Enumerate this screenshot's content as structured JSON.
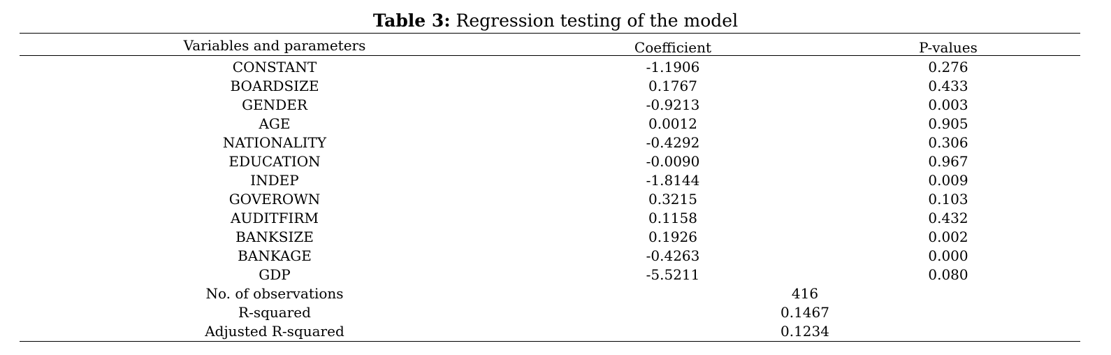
{
  "caption": {
    "label": "Table 3:",
    "text": " Regression testing of the model"
  },
  "table": {
    "headers": {
      "variables": "Variables and parameters",
      "coefficient": "Coefficient",
      "pvalues": "P-values"
    },
    "rows": [
      {
        "variable": "CONSTANT",
        "coefficient": "-1.1906",
        "pvalue": "0.276"
      },
      {
        "variable": "BOARDSIZE",
        "coefficient": "0.1767",
        "pvalue": "0.433"
      },
      {
        "variable": "GENDER",
        "coefficient": "-0.9213",
        "pvalue": "0.003"
      },
      {
        "variable": "AGE",
        "coefficient": "0.0012",
        "pvalue": "0.905"
      },
      {
        "variable": "NATIONALITY",
        "coefficient": "-0.4292",
        "pvalue": "0.306"
      },
      {
        "variable": "EDUCATION",
        "coefficient": "-0.0090",
        "pvalue": "0.967"
      },
      {
        "variable": "INDEP",
        "coefficient": "-1.8144",
        "pvalue": "0.009"
      },
      {
        "variable": "GOVEROWN",
        "coefficient": "0.3215",
        "pvalue": "0.103"
      },
      {
        "variable": "AUDITFIRM",
        "coefficient": "0.1158",
        "pvalue": "0.432"
      },
      {
        "variable": "BANKSIZE",
        "coefficient": "0.1926",
        "pvalue": "0.002"
      },
      {
        "variable": "BANKAGE",
        "coefficient": "-0.4263",
        "pvalue": "0.000"
      },
      {
        "variable": "GDP",
        "coefficient": "-5.5211",
        "pvalue": "0.080"
      }
    ],
    "summary": [
      {
        "label": "No. of observations",
        "value": "416"
      },
      {
        "label": "R-squared",
        "value": "0.1467"
      },
      {
        "label": "Adjusted R-squared",
        "value": "0.1234"
      }
    ]
  }
}
